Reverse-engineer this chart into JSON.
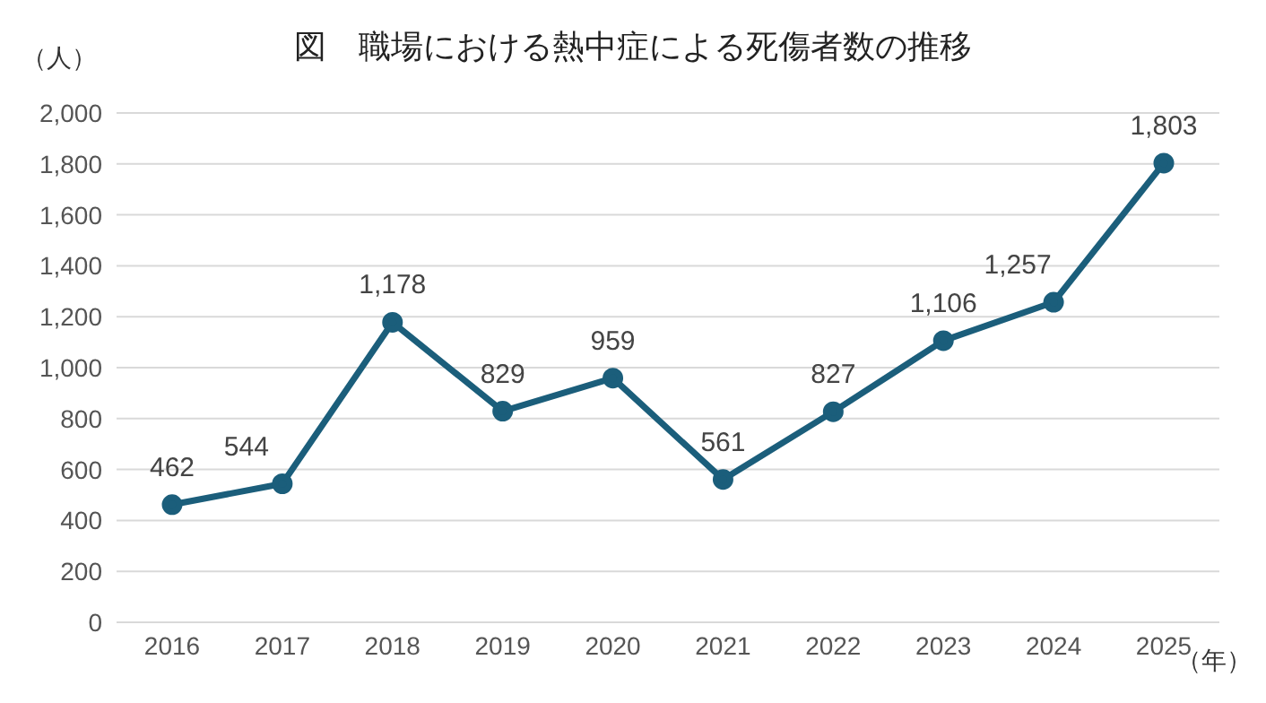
{
  "chart_data": {
    "type": "line",
    "title": "図　職場における熱中症による死傷者数の推移",
    "ylabel": "（人）",
    "xlabel": "（年）",
    "categories": [
      "2016",
      "2017",
      "2018",
      "2019",
      "2020",
      "2021",
      "2022",
      "2023",
      "2024",
      "2025"
    ],
    "series": [
      {
        "color": "#1b5e7b",
        "values": [
          462,
          544,
          1178,
          829,
          959,
          561,
          827,
          1106,
          1257,
          1803
        ],
        "value_labels": [
          "462",
          "544",
          "1,178",
          "829",
          "959",
          "561",
          "827",
          "1,106",
          "1,257",
          "1,803"
        ]
      }
    ],
    "ylim": [
      0,
      2000
    ],
    "yticks": [
      0,
      200,
      400,
      600,
      800,
      {
        "value": 1000,
        "label": "1,000"
      },
      {
        "value": 1200,
        "label": "1,200"
      },
      {
        "value": 1400,
        "label": "1,400"
      },
      {
        "value": 1600,
        "label": "1,600"
      },
      {
        "value": 1800,
        "label": "1,800"
      },
      {
        "value": 2000,
        "label": "2,000"
      }
    ],
    "grid": "y",
    "marker": "circle",
    "line_style": "solid",
    "legend": false
  }
}
